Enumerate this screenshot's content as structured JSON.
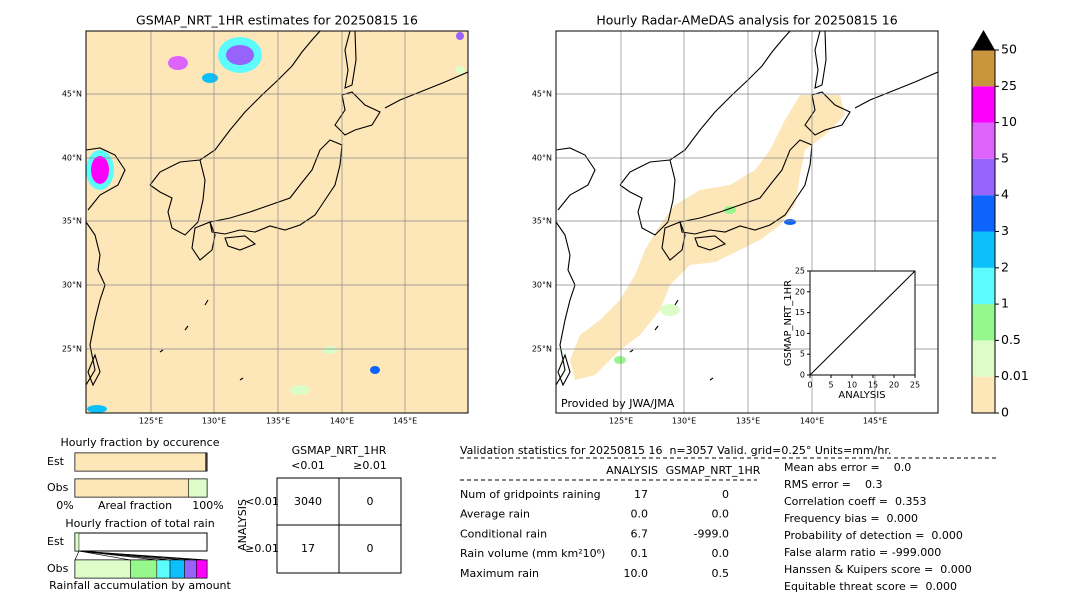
{
  "left_map": {
    "title": "GSMAP_NRT_1HR estimates for 20250815 16",
    "lat_labels": [
      "45°N",
      "40°N",
      "35°N",
      "30°N",
      "25°N"
    ],
    "lon_labels": [
      "125°E",
      "130°E",
      "135°E",
      "140°E",
      "145°E"
    ]
  },
  "right_map": {
    "title": "Hourly Radar-AMeDAS analysis for 20250815 16",
    "credit": "Provided by JWA/JMA",
    "lat_labels": [
      "45°N",
      "40°N",
      "35°N",
      "30°N",
      "25°N"
    ],
    "lon_labels": [
      "125°E",
      "130°E",
      "135°E",
      "140°E",
      "145°E"
    ]
  },
  "colorbar": {
    "ticks": [
      0,
      0.01,
      0.5,
      1,
      2,
      3,
      4,
      5,
      10,
      25,
      50
    ],
    "colors": [
      "#fde6b8",
      "#dcfcc8",
      "#96f78c",
      "#5cfcfc",
      "#0cc0fc",
      "#0c64fc",
      "#9664fc",
      "#dc64fc",
      "#fc00fc",
      "#c8963c"
    ],
    "extend_color": "#000000"
  },
  "scatter": {
    "type": "line",
    "xlabel": "ANALYSIS",
    "ylabel": "GSMAP_NRT_1HR",
    "xlim": [
      0,
      25
    ],
    "ylim": [
      0,
      25
    ],
    "xticks": [
      0,
      5,
      10,
      15,
      20,
      25
    ],
    "yticks": [
      0,
      5,
      10,
      15,
      20,
      25
    ]
  },
  "occurrence": {
    "title": "Hourly fraction by occurence",
    "left_label": "0%",
    "mid_label": "Areal fraction",
    "right_label": "100%",
    "bars": [
      {
        "label": "Est",
        "segments": [
          {
            "value": 0.99,
            "color": "#fde6b8"
          },
          {
            "value": 0.01,
            "color": "#444444"
          }
        ]
      },
      {
        "label": "Obs",
        "segments": [
          {
            "value": 0.86,
            "color": "#fde6b8"
          },
          {
            "value": 0.14,
            "color": "#dcfcc8"
          }
        ]
      }
    ]
  },
  "total_rain": {
    "title": "Hourly fraction of total rain",
    "footer": "Rainfall accumulation by amount",
    "bars": [
      {
        "label": "Est",
        "segments": [
          {
            "value": 0.03,
            "color": "#dcfcc8"
          }
        ]
      },
      {
        "label": "Obs",
        "segments": [
          {
            "value": 0.42,
            "color": "#dcfcc8"
          },
          {
            "value": 0.2,
            "color": "#96f78c"
          },
          {
            "value": 0.1,
            "color": "#5cfcfc"
          },
          {
            "value": 0.11,
            "color": "#0cc0fc"
          },
          {
            "value": 0.09,
            "color": "#9664fc"
          },
          {
            "value": 0.08,
            "color": "#fc00fc"
          }
        ]
      }
    ]
  },
  "contingency": {
    "title": "GSMAP_NRT_1HR",
    "col_headers": [
      "<0.01",
      "≥0.01"
    ],
    "row_title": "ANALYSIS",
    "row_headers": [
      "<0.01",
      "≥0.01"
    ],
    "cells": [
      [
        3040,
        0
      ],
      [
        17,
        0
      ]
    ]
  },
  "stats": {
    "header": "Validation statistics for 20250815 16  n=3057 Valid. grid=0.25° Units=mm/hr.",
    "columns": [
      "ANALYSIS",
      "GSMAP_NRT_1HR"
    ],
    "rows": [
      {
        "label": "Num of gridpoints raining",
        "values": [
          "17",
          "0"
        ]
      },
      {
        "label": "Average rain",
        "values": [
          "0.0",
          "0.0"
        ]
      },
      {
        "label": "Conditional rain",
        "values": [
          "6.7",
          "-999.0"
        ]
      },
      {
        "label": "Rain volume (mm km²10⁶)",
        "values": [
          "0.1",
          "0.0"
        ]
      },
      {
        "label": "Maximum rain",
        "values": [
          "10.0",
          "0.5"
        ]
      }
    ],
    "scores": [
      "Mean abs error =    0.0",
      "RMS error =    0.3",
      "Correlation coeff =  0.353",
      "Frequency bias =  0.000",
      "Probability of detection =  0.000",
      "False alarm ratio = -999.000",
      "Hanssen & Kuipers score =  0.000",
      "Equitable threat score =  0.000"
    ]
  }
}
